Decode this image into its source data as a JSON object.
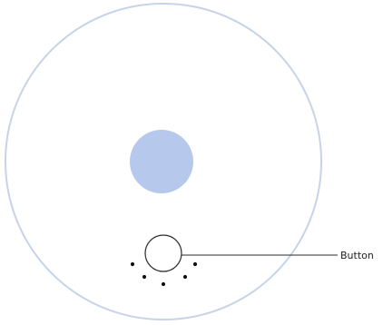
{
  "diagram": {
    "callout": {
      "label": "Button"
    },
    "colors": {
      "outer_ring": "#c6d3e8",
      "center_disc": "#b6c8eb",
      "button_outline": "#2b2b2b",
      "leader_line": "#2b2b2b",
      "dots": "#111111",
      "background": "#ffffff"
    },
    "indicator_dots": {
      "count": 5
    }
  }
}
